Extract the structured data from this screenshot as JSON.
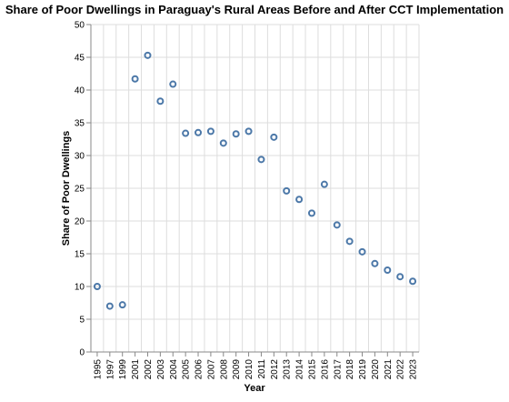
{
  "chart_data": {
    "type": "scatter",
    "title": "Share of Poor Dwellings in Paraguay's Rural Areas Before and After CCT Implementation",
    "xlabel": "Year",
    "ylabel": "Share of Poor Dwellings",
    "ylim": [
      0,
      50
    ],
    "y_ticks": [
      0,
      5,
      10,
      15,
      20,
      25,
      30,
      35,
      40,
      45,
      50
    ],
    "grid": true,
    "marker_color": "#4c78a8",
    "x": [
      "1995",
      "1997",
      "1999",
      "2001",
      "2002",
      "2003",
      "2004",
      "2005",
      "2006",
      "2007",
      "2008",
      "2009",
      "2010",
      "2011",
      "2012",
      "2013",
      "2014",
      "2015",
      "2016",
      "2017",
      "2018",
      "2019",
      "2020",
      "2021",
      "2022",
      "2023"
    ],
    "values": [
      10.0,
      7.0,
      7.2,
      41.7,
      45.3,
      38.3,
      40.9,
      33.4,
      33.5,
      33.7,
      31.9,
      33.3,
      33.7,
      29.4,
      32.8,
      24.6,
      23.3,
      21.2,
      25.6,
      19.4,
      16.9,
      15.3,
      13.5,
      12.5,
      11.5,
      10.8
    ]
  }
}
